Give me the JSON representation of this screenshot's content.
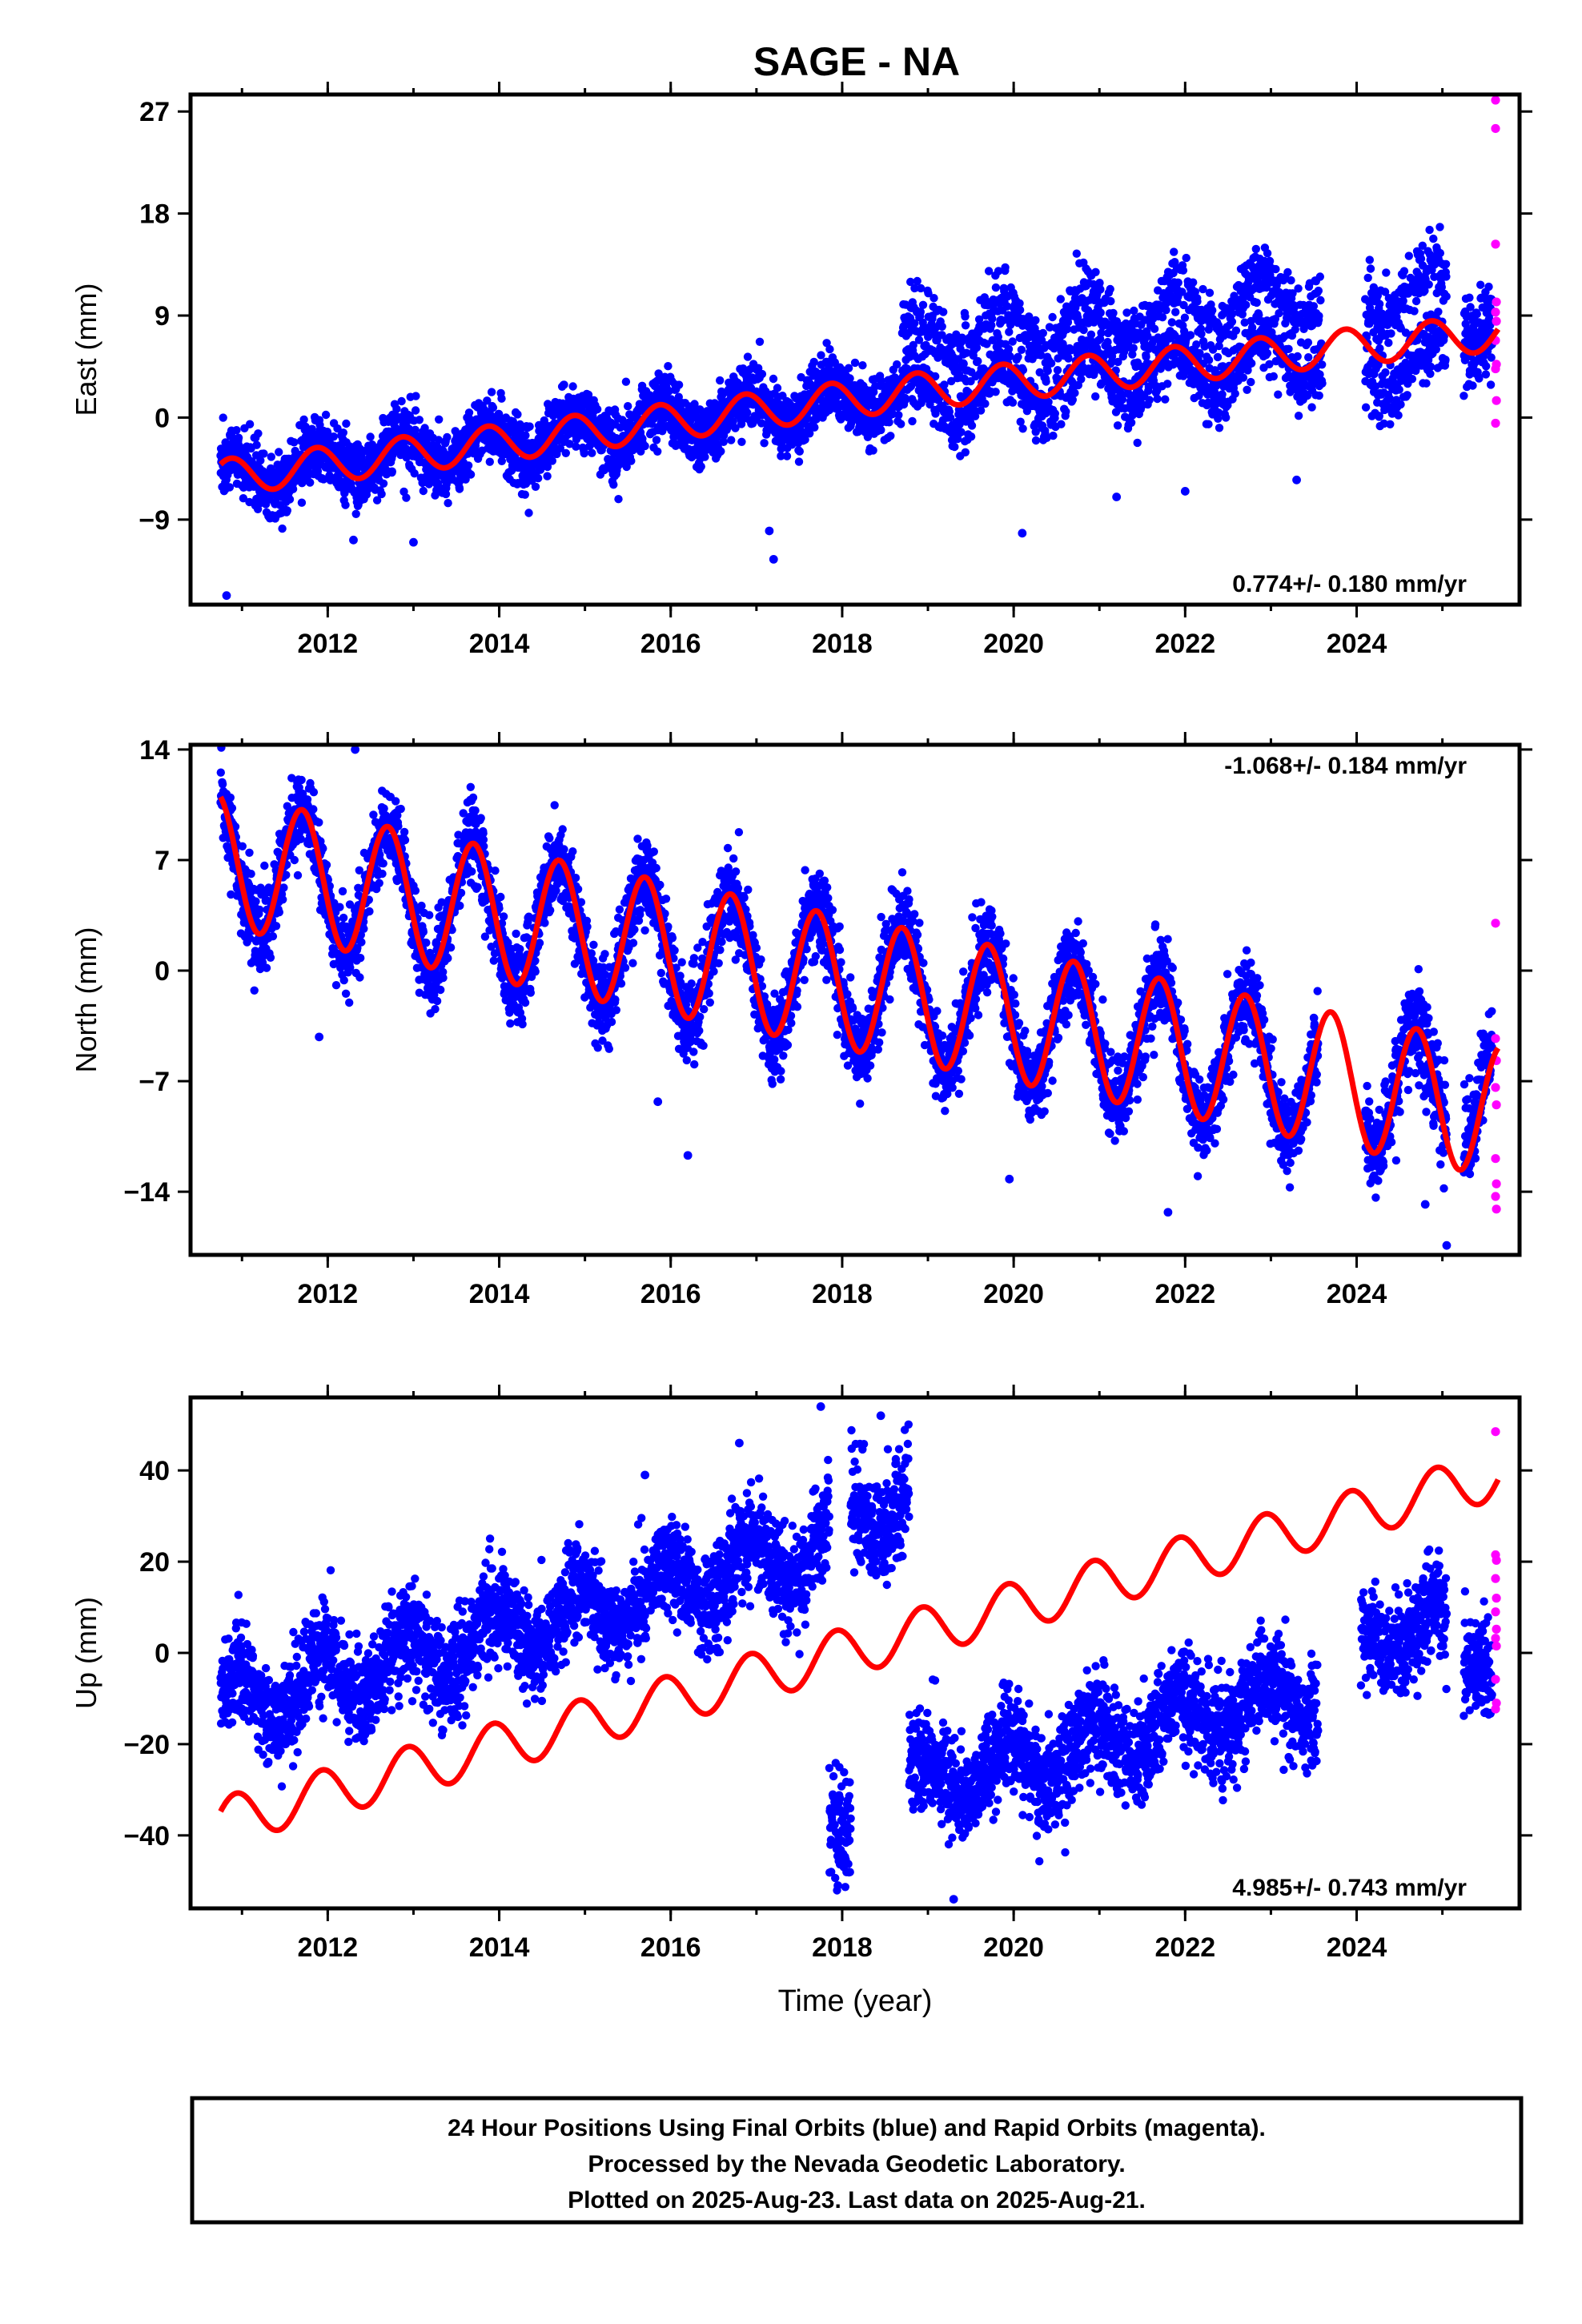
{
  "title": "SAGE - NA",
  "colors": {
    "final": "#0000ff",
    "rapid": "#ff00ff",
    "model": "#ff0000",
    "axis": "#000000"
  },
  "chart_data": [
    {
      "type": "scatter",
      "component": "east",
      "ylabel": "East (mm)",
      "ylim": [
        -16.5,
        28.5
      ],
      "yticks": [
        -9,
        0,
        9,
        18,
        27
      ],
      "xlim": [
        2010.4,
        2025.9
      ],
      "xticks": [
        2012,
        2014,
        2016,
        2018,
        2020,
        2022,
        2024
      ],
      "rate_label": "0.774+/- 0.180 mm/yr",
      "rate_position": "bottom-right",
      "series": [
        {
          "name": "Final Orbits",
          "segments": [
            {
              "x": [
                2010.75,
                2018.7
              ],
              "y0": -5.3,
              "slope": 0.95,
              "amp": 1.6,
              "noise": 1.4
            },
            {
              "x": [
                2018.7,
                2023.6
              ],
              "y0": 1.3,
              "slope": 0.85,
              "amp": 2.3,
              "noise": 1.3,
              "branch_offset": 5.6
            },
            {
              "x": [
                2024.1,
                2025.05
              ],
              "y0": 4.0,
              "slope": 1.0,
              "amp": 2.0,
              "noise": 1.5,
              "branch_offset": 6.5
            },
            {
              "x": [
                2025.25,
                2025.58
              ],
              "y0": 8.5,
              "slope": 1.0,
              "amp": 2.0,
              "noise": 2.0
            }
          ],
          "outliers": [
            [
              2010.82,
              -15.7
            ],
            [
              2012.3,
              -10.8
            ],
            [
              2013.0,
              -11.0
            ],
            [
              2017.15,
              -10.0
            ],
            [
              2017.2,
              -12.5
            ],
            [
              2020.1,
              -10.2
            ],
            [
              2021.2,
              -7.0
            ],
            [
              2022.0,
              -6.5
            ],
            [
              2023.3,
              -5.5
            ]
          ]
        },
        {
          "name": "Rapid Orbits",
          "points": [
            [
              2025.62,
              28.0
            ],
            [
              2025.62,
              25.5
            ],
            [
              2025.62,
              15.3
            ],
            [
              2025.63,
              10.2
            ],
            [
              2025.62,
              9.3
            ],
            [
              2025.63,
              8.5
            ],
            [
              2025.62,
              6.8
            ],
            [
              2025.63,
              4.7
            ],
            [
              2025.62,
              4.3
            ],
            [
              2025.63,
              1.5
            ],
            [
              2025.62,
              -0.5
            ]
          ]
        },
        {
          "name": "Model",
          "type": "line",
          "knots": [
            [
              2010.75,
              -5.3
            ],
            [
              2018.7,
              2.2
            ],
            [
              2023.6,
              6.0
            ],
            [
              2025.65,
              7.5
            ]
          ],
          "amp": 1.6,
          "phase_year": 2011.62
        }
      ]
    },
    {
      "type": "scatter",
      "component": "north",
      "ylabel": "North (mm)",
      "ylim": [
        -18,
        14.3
      ],
      "yticks": [
        -14,
        -7,
        0,
        7,
        14
      ],
      "xlim": [
        2010.4,
        2025.9
      ],
      "xticks": [
        2012,
        2014,
        2016,
        2018,
        2020,
        2022,
        2024
      ],
      "rate_label": "-1.068+/- 0.184 mm/yr",
      "rate_position": "top-right",
      "series": [
        {
          "name": "Final Orbits",
          "segments": [
            {
              "x": [
                2010.75,
                2023.55
              ],
              "y0": 7.0,
              "slope": -1.07,
              "amp": 4.2,
              "noise": 1.3
            },
            {
              "x": [
                2024.1,
                2025.05
              ],
              "y0": -7.0,
              "slope": -1.07,
              "amp": 4.2,
              "noise": 1.4
            },
            {
              "x": [
                2025.25,
                2025.58
              ],
              "y0": -7.8,
              "slope": -1.07,
              "amp": 4.2,
              "noise": 1.5
            }
          ],
          "outliers": [
            [
              2012.32,
              14.0
            ],
            [
              2011.9,
              -4.2
            ],
            [
              2015.85,
              -8.3
            ],
            [
              2016.2,
              -11.7
            ],
            [
              2019.95,
              -13.2
            ],
            [
              2021.8,
              -15.3
            ],
            [
              2024.8,
              -14.8
            ],
            [
              2025.05,
              -17.4
            ]
          ]
        },
        {
          "name": "Rapid Orbits",
          "points": [
            [
              2025.62,
              3.0
            ],
            [
              2025.62,
              -4.3
            ],
            [
              2025.63,
              -5.7
            ],
            [
              2025.62,
              -7.4
            ],
            [
              2025.63,
              -8.5
            ],
            [
              2025.62,
              -11.9
            ],
            [
              2025.63,
              -13.5
            ],
            [
              2025.62,
              -14.3
            ],
            [
              2025.63,
              -15.1
            ]
          ]
        },
        {
          "name": "Model",
          "type": "line",
          "knots": [
            [
              2010.75,
              7.0
            ],
            [
              2025.65,
              -8.9
            ]
          ],
          "amp": 4.2,
          "phase_year": 2011.45
        }
      ]
    },
    {
      "type": "scatter",
      "component": "up",
      "ylabel": "Up (mm)",
      "ylim": [
        -56,
        56
      ],
      "yticks": [
        -40,
        -20,
        0,
        20,
        40
      ],
      "xlim": [
        2010.4,
        2025.9
      ],
      "xticks": [
        2012,
        2014,
        2016,
        2018,
        2020,
        2022,
        2024
      ],
      "xlabel": "Time (year)",
      "rate_label": "4.985+/- 0.743 mm/yr",
      "rate_position": "bottom-right",
      "series": [
        {
          "name": "Final Orbits",
          "segments": [
            {
              "x": [
                2010.75,
                2017.85
              ],
              "y0": -12.0,
              "slope": 5.0,
              "amp": 6.0,
              "noise": 5.5
            },
            {
              "x": [
                2017.85,
                2018.1
              ],
              "y0": -38.0,
              "slope": 0.0,
              "amp": 0.0,
              "noise": 6.0
            },
            {
              "x": [
                2018.1,
                2018.78
              ],
              "y0": 29.0,
              "slope": 5.0,
              "amp": 5.0,
              "noise": 6.5
            },
            {
              "x": [
                2018.78,
                2023.55
              ],
              "y0": -30.0,
              "slope": 4.6,
              "amp": 5.5,
              "noise": 5.5
            },
            {
              "x": [
                2024.05,
                2025.05
              ],
              "y0": 3.0,
              "slope": 3.0,
              "amp": 5.0,
              "noise": 5.5
            },
            {
              "x": [
                2025.25,
                2025.58
              ],
              "y0": 0.0,
              "slope": 3.0,
              "amp": 5.0,
              "noise": 6.0
            }
          ],
          "outliers": [
            [
              2017.75,
              54.0
            ],
            [
              2018.45,
              52.0
            ],
            [
              2017.95,
              -51.0
            ],
            [
              2019.3,
              -54.0
            ],
            [
              2015.7,
              39.0
            ],
            [
              2016.8,
              46.0
            ]
          ]
        },
        {
          "name": "Rapid Orbits",
          "points": [
            [
              2025.62,
              48.5
            ],
            [
              2025.62,
              21.5
            ],
            [
              2025.63,
              20.3
            ],
            [
              2025.62,
              16.3
            ],
            [
              2025.63,
              12.0
            ],
            [
              2025.62,
              9.0
            ],
            [
              2025.63,
              5.2
            ],
            [
              2025.62,
              3.2
            ],
            [
              2025.63,
              1.5
            ],
            [
              2025.62,
              -5.8
            ],
            [
              2025.63,
              -11.0
            ],
            [
              2025.62,
              -12.3
            ]
          ]
        },
        {
          "name": "Model",
          "type": "line",
          "knots": [
            [
              2010.75,
              -37.0
            ],
            [
              2025.65,
              39.0
            ]
          ],
          "amp": 5.3,
          "phase_year": 2011.68
        }
      ]
    }
  ],
  "footer": {
    "line1": "24 Hour Positions Using Final Orbits (blue) and Rapid Orbits (magenta).",
    "line2": "Processed by the Nevada Geodetic Laboratory.",
    "line3": "Plotted on 2025-Aug-23. Last data on 2025-Aug-21."
  }
}
